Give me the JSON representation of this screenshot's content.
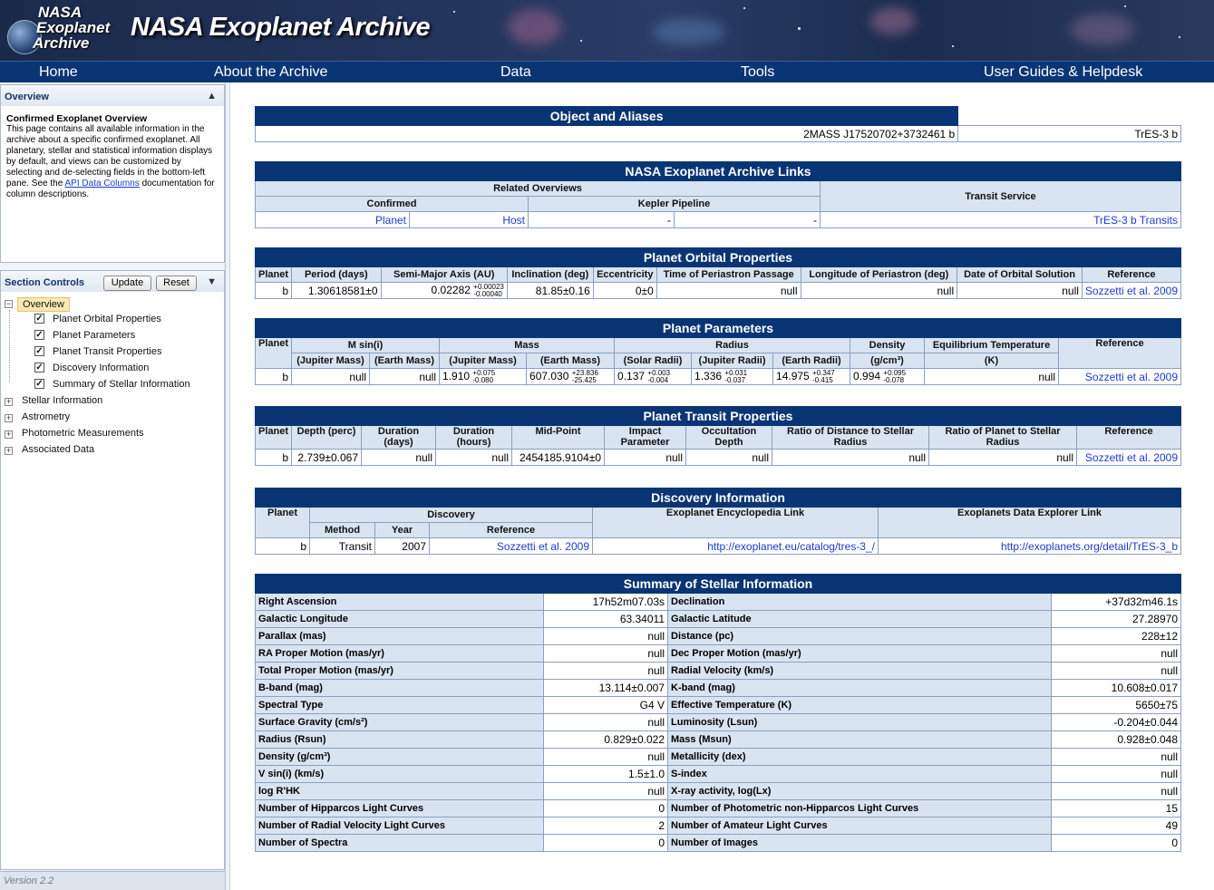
{
  "header": {
    "logo_lines": [
      "NASA",
      "Exoplanet",
      "Archive"
    ],
    "title": "NASA Exoplanet Archive"
  },
  "nav": [
    "Home",
    "About the Archive",
    "Data",
    "Tools",
    "User Guides & Helpdesk"
  ],
  "sidebar": {
    "overview_title": "Overview",
    "overview_heading": "Confirmed Exoplanet Overview",
    "overview_text": "This page contains all available information in the archive about a specific confirmed exoplanet. All planetary, stellar and statistical information displays by default, and views can be customized by selecting and de-selecting fields in the bottom-left pane. See the",
    "overview_link": "API Data Columns",
    "overview_text2": "documentation for column descriptions.",
    "section_controls": "Section Controls",
    "update_label": "Update",
    "reset_label": "Reset",
    "tree_root": "Overview",
    "tree_children": [
      "Planet Orbital Properties",
      "Planet Parameters",
      "Planet Transit Properties",
      "Discovery Information",
      "Summary of Stellar Information"
    ],
    "tree_other": [
      "Stellar Information",
      "Astrometry",
      "Photometric Measurements",
      "Associated Data"
    ],
    "version": "Version 2.2"
  },
  "aliases": {
    "title": "Object and Aliases",
    "values": [
      "2MASS J17520702+3732461 b",
      "TrES-3 b"
    ]
  },
  "links": {
    "title": "NASA Exoplanet Archive Links",
    "related": "Related Overviews",
    "transit": "Transit Service",
    "confirmed": "Confirmed",
    "kepler": "Kepler Pipeline",
    "planet": "Planet",
    "host": "Host",
    "dash1": "-",
    "dash2": "-",
    "transits": "TrES-3 b Transits"
  },
  "orbital": {
    "title": "Planet Orbital Properties",
    "headers": [
      "Planet",
      "Period (days)",
      "Semi-Major Axis (AU)",
      "Inclination (deg)",
      "Eccentricity",
      "Time of Periastron Passage",
      "Longitude of Periastron (deg)",
      "Date of Orbital Solution",
      "Reference"
    ],
    "planet": "b",
    "period": "1.30618581±0",
    "sma": "0.02282",
    "sma_up": "+0.00023",
    "sma_dn": "-0.00040",
    "incl": "81.85±0.16",
    "ecc": "0±0",
    "tperi": "null",
    "lperi": "null",
    "date": "null",
    "ref": "Sozzetti et al. 2009"
  },
  "params": {
    "title": "Planet Parameters",
    "h1": [
      "Planet",
      "M sin(i)",
      "Mass",
      "Radius",
      "Density",
      "Equilibrium Temperature",
      "Reference"
    ],
    "h2": [
      "(Jupiter Mass)",
      "(Earth Mass)",
      "(Jupiter Mass)",
      "(Earth Mass)",
      "(Solar Radii)",
      "(Jupiter Radii)",
      "(Earth Radii)",
      "(g/cm³)",
      "(K)"
    ],
    "planet": "b",
    "msini_j": "null",
    "msini_e": "null",
    "mass_j": "1.910",
    "mass_j_up": "+0.075",
    "mass_j_dn": "-0.080",
    "mass_e": "607.030",
    "mass_e_up": "+23.836",
    "mass_e_dn": "-25.425",
    "rad_s": "0.137",
    "rad_s_up": "+0.003",
    "rad_s_dn": "-0.004",
    "rad_j": "1.336",
    "rad_j_up": "+0.031",
    "rad_j_dn": "-0.037",
    "rad_e": "14.975",
    "rad_e_up": "+0.347",
    "rad_e_dn": "-0.415",
    "dens": "0.994",
    "dens_up": "+0.095",
    "dens_dn": "-0.078",
    "teq": "null",
    "ref": "Sozzetti et al. 2009"
  },
  "transit": {
    "title": "Planet Transit Properties",
    "headers": [
      "Planet",
      "Depth (perc)",
      "Duration (days)",
      "Duration (hours)",
      "Mid-Point",
      "Impact Parameter",
      "Occultation Depth",
      "Ratio of Distance to Stellar Radius",
      "Ratio of Planet to Stellar Radius",
      "Reference"
    ],
    "row": [
      "b",
      "2.739±0.067",
      "null",
      "null",
      "2454185.9104±0",
      "null",
      "null",
      "null",
      "null",
      "Sozzetti et al. 2009"
    ]
  },
  "discovery": {
    "title": "Discovery Information",
    "h_planet": "Planet",
    "h_disc": "Discovery",
    "h_enc": "Exoplanet Encyclopedia Link",
    "h_exp": "Exoplanets Data Explorer Link",
    "h_method": "Method",
    "h_year": "Year",
    "h_ref": "Reference",
    "row": [
      "b",
      "Transit",
      "2007",
      "Sozzetti et al. 2009",
      "http://exoplanet.eu/catalog/tres-3_/",
      "http://exoplanets.org/detail/TrES-3_b"
    ]
  },
  "stellar": {
    "title": "Summary of Stellar Information",
    "rows": [
      [
        "Right Ascension",
        "17h52m07.03s",
        "Declination",
        "+37d32m46.1s"
      ],
      [
        "Galactic Longitude",
        "63.34011",
        "Galactic Latitude",
        "27.28970"
      ],
      [
        "Parallax (mas)",
        "null",
        "Distance (pc)",
        "228±12"
      ],
      [
        "RA Proper Motion (mas/yr)",
        "null",
        "Dec Proper Motion (mas/yr)",
        "null"
      ],
      [
        "Total Proper Motion (mas/yr)",
        "null",
        "Radial Velocity (km/s)",
        "null"
      ],
      [
        "B-band (mag)",
        "13.114±0.007",
        "K-band (mag)",
        "10.608±0.017"
      ],
      [
        "Spectral Type",
        "G4 V",
        "Effective Temperature (K)",
        "5650±75"
      ],
      [
        "Surface Gravity (cm/s²)",
        "null",
        "Luminosity (Lsun)",
        "-0.204±0.044"
      ],
      [
        "Radius (Rsun)",
        "0.829±0.022",
        "Mass (Msun)",
        "0.928±0.048"
      ],
      [
        "Density (g/cm³)",
        "null",
        "Metallicity (dex)",
        "null"
      ],
      [
        "V sin(i) (km/s)",
        "1.5±1.0",
        "S-index",
        "null"
      ],
      [
        "log R'HK",
        "null",
        "X-ray activity, log(Lx)",
        "null"
      ],
      [
        "Number of Hipparcos Light Curves",
        "0",
        "Number of Photometric non-Hipparcos Light Curves",
        "15"
      ],
      [
        "Number of Radial Velocity Light Curves",
        "2",
        "Number of Amateur Light Curves",
        "49"
      ],
      [
        "Number of Spectra",
        "0",
        "Number of Images",
        "0"
      ]
    ]
  }
}
